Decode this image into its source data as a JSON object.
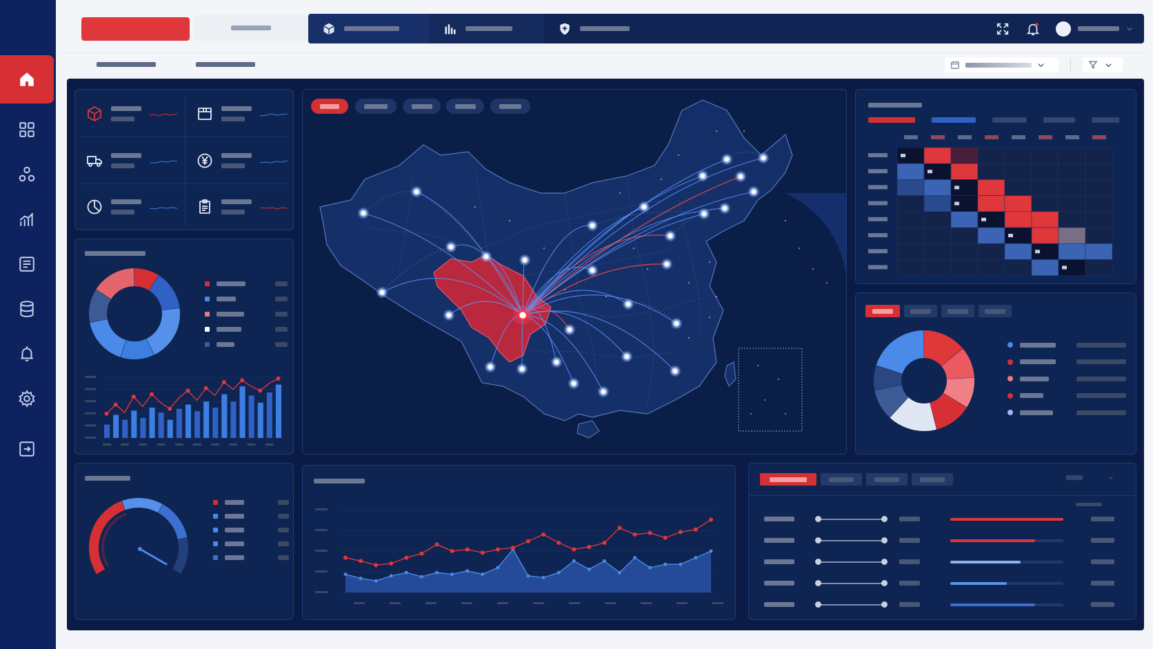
{
  "colors": {
    "accent_red": "#d63035",
    "accent_blue": "#3d7fe0",
    "navy": "#0e2260",
    "panel": "#0e2452"
  },
  "sidebar": {
    "items": [
      {
        "icon": "home-icon",
        "active": true
      },
      {
        "icon": "grid-icon"
      },
      {
        "icon": "network-icon"
      },
      {
        "icon": "bar-chart-icon"
      },
      {
        "icon": "list-icon"
      },
      {
        "icon": "database-icon"
      },
      {
        "icon": "alarm-icon"
      },
      {
        "icon": "gear-icon"
      },
      {
        "icon": "logout-icon"
      }
    ]
  },
  "topbar": {
    "tabs": [
      {
        "icon": "cube-icon"
      },
      {
        "icon": "bar-chart-icon"
      },
      {
        "icon": "shield-icon"
      }
    ],
    "icons": [
      "fullscreen-icon",
      "bell-icon",
      "avatar"
    ]
  },
  "kpis": [
    {
      "icon": "cube-icon",
      "trend": "red"
    },
    {
      "icon": "package-icon",
      "trend": "blue"
    },
    {
      "icon": "truck-icon",
      "trend": "blue"
    },
    {
      "icon": "yen-icon",
      "trend": "blue"
    },
    {
      "icon": "pie-icon",
      "trend": "blue"
    },
    {
      "icon": "clipboard-icon",
      "trend": "red"
    }
  ],
  "donut_left": {
    "legend_colors": [
      "#d63035",
      "#4a8ae8",
      "#e97a80",
      "#ffffff",
      "#3d5a99"
    ]
  },
  "donut_right": {
    "legend_colors": [
      "#4a8ae8",
      "#d63035",
      "#e97a80",
      "#d63035",
      "#9fb8ea"
    ]
  },
  "gauge": {
    "legend_colors": [
      "#d63035",
      "#4a8ae8",
      "#4a8ae8",
      "#4a8ae8",
      "#3d6fd0"
    ]
  },
  "progress_rows": [
    {
      "value": 1.0,
      "color": "#e0373b"
    },
    {
      "value": 0.75,
      "color": "#e0373b"
    },
    {
      "value": 0.62,
      "color": "#8fb3f0"
    },
    {
      "value": 0.5,
      "color": "#5b93ea"
    },
    {
      "value": 0.75,
      "color": "#3d6fd0"
    }
  ],
  "chart_data": [
    {
      "type": "bar",
      "title": "",
      "values": [
        22,
        38,
        30,
        45,
        33,
        50,
        42,
        30,
        48,
        55,
        44,
        60,
        50,
        72,
        60,
        85,
        70,
        58,
        75,
        88
      ],
      "series": [
        {
          "values": [
            40,
            55,
            42,
            68,
            52,
            72,
            58,
            48,
            66,
            78,
            62,
            82,
            70,
            92,
            80,
            95,
            85,
            78,
            90,
            98
          ]
        }
      ]
    },
    {
      "type": "line",
      "title": "",
      "series": [
        {
          "values": [
            42,
            38,
            33,
            35,
            42,
            47,
            58,
            50,
            52,
            48,
            52,
            54,
            62,
            70,
            60,
            52,
            55,
            60,
            78,
            70,
            72,
            66,
            73,
            76,
            88
          ]
        },
        {
          "values": [
            22,
            17,
            14,
            20,
            24,
            19,
            24,
            22,
            26,
            22,
            30,
            52,
            20,
            18,
            24,
            38,
            28,
            38,
            24,
            42,
            30,
            34,
            34,
            42,
            50
          ]
        }
      ]
    },
    {
      "type": "heatmap",
      "title": "",
      "rows": 8,
      "cols": 8
    }
  ]
}
